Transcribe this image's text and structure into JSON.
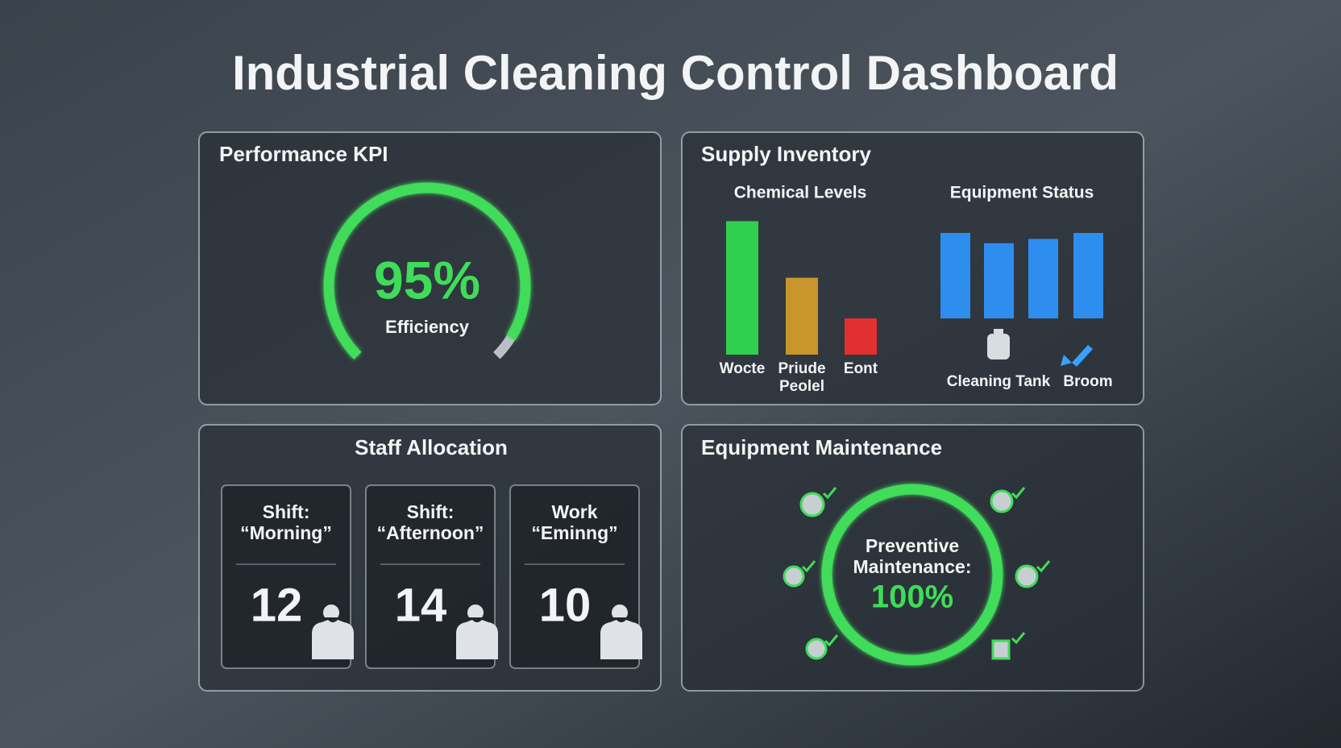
{
  "title": "Industrial Cleaning Control Dashboard",
  "performance": {
    "title": "Performance KPI",
    "efficiency": {
      "value": 95,
      "label": "95%"
    },
    "caption": "Efficiency",
    "color": "#3fdc5a"
  },
  "supply": {
    "title": "Supply Inventory",
    "chemical": {
      "title": "Chemical Levels",
      "categories": [
        [
          "Wocte"
        ],
        [
          "Priude",
          "Peolel"
        ],
        [
          "Eont"
        ]
      ],
      "values": [
        92,
        53,
        25
      ],
      "colors": [
        "#2fd04f",
        "#c8962a",
        "#e23030"
      ]
    },
    "equipment": {
      "title": "Equipment Status",
      "categories": [
        null,
        "Cleaning Tank",
        null,
        "Broom"
      ],
      "values": [
        100,
        88,
        93,
        100
      ],
      "color": "#2d8ef0"
    }
  },
  "staff": {
    "title": "Staff Allocation",
    "shifts": [
      {
        "label": [
          "Shift:",
          "“Morning”"
        ],
        "count": 12
      },
      {
        "label": [
          "Shift:",
          "“Afternoon”"
        ],
        "count": 14
      },
      {
        "label": [
          "Work",
          "“Eminng”"
        ],
        "count": 10
      }
    ]
  },
  "maintenance": {
    "title": "Equipment Maintenance",
    "caption": [
      "Preventive",
      "Maintenance:"
    ],
    "completion": {
      "value": 100,
      "label": "100%"
    },
    "color": "#3fdc5a"
  }
}
